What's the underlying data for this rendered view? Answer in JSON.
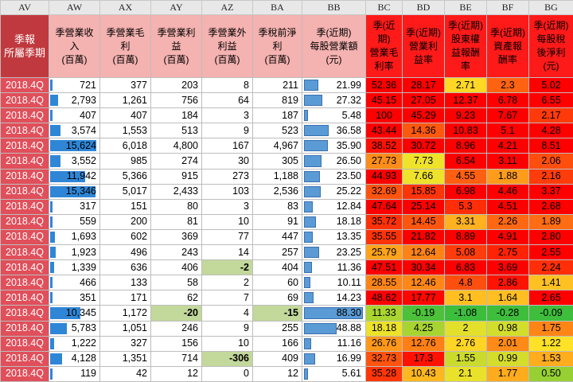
{
  "columns": [
    "AV",
    "AW",
    "AX",
    "AY",
    "AZ",
    "BA",
    "BB",
    "BC",
    "BD",
    "BE",
    "BF",
    "BG"
  ],
  "headers": [
    "季報\n所屬季期",
    "季營業收\n入\n(百萬)",
    "季營業毛\n利\n(百萬)",
    "季營業利\n益\n(百萬)",
    "季營業外\n利益\n(百萬)",
    "季稅前淨\n利\n(百萬)",
    "季(近期)\n每股營業額\n(元)",
    "季(近\n期)\n營業毛\n利率",
    "季(近期)\n營業利\n益率",
    "季(近期)\n股東權\n益報酬\n率",
    "季(近期)\n資產報\n酬率",
    "季(近期)\n每股稅\n後淨利\n(元)"
  ],
  "colors": {
    "quarter_bg": "#e04f5a",
    "header_bg": "#f4b2b0",
    "bar_blue": "#2f86d6",
    "highlight_green": "#c3d89b"
  },
  "rows": [
    {
      "q": "2018.4Q",
      "aw": "721",
      "aw_v": 721,
      "ax": "377",
      "ay": "203",
      "az": "8",
      "ba": "211",
      "bb": "21.99",
      "bb_v": 21.99,
      "bc": "52.36",
      "bd": "28.17",
      "be": "2.71",
      "bf": "2.3",
      "bg": "5.02",
      "hl": []
    },
    {
      "q": "2018.4Q",
      "aw": "2,793",
      "aw_v": 2793,
      "ax": "1,261",
      "ay": "756",
      "az": "64",
      "ba": "819",
      "bb": "27.32",
      "bb_v": 27.32,
      "bc": "45.15",
      "bd": "27.05",
      "be": "12.37",
      "bf": "6.78",
      "bg": "6.55",
      "hl": []
    },
    {
      "q": "2018.4Q",
      "aw": "407",
      "aw_v": 407,
      "ax": "407",
      "ay": "184",
      "az": "3",
      "ba": "187",
      "bb": "5.48",
      "bb_v": 5.48,
      "bc": "100",
      "bd": "45.29",
      "be": "9.23",
      "bf": "7.67",
      "bg": "2.17",
      "hl": []
    },
    {
      "q": "2018.4Q",
      "aw": "3,574",
      "aw_v": 3574,
      "ax": "1,553",
      "ay": "513",
      "az": "9",
      "ba": "523",
      "bb": "36.58",
      "bb_v": 36.58,
      "bc": "43.44",
      "bd": "14.36",
      "be": "10.83",
      "bf": "5.1",
      "bg": "4.28",
      "hl": []
    },
    {
      "q": "2018.4Q",
      "aw": "15,624",
      "aw_v": 15624,
      "ax": "6,018",
      "ay": "4,800",
      "az": "167",
      "ba": "4,967",
      "bb": "35.90",
      "bb_v": 35.9,
      "bc": "38.52",
      "bd": "30.72",
      "be": "8.96",
      "bf": "4.21",
      "bg": "8.51",
      "hl": []
    },
    {
      "q": "2018.4Q",
      "aw": "3,552",
      "aw_v": 3552,
      "ax": "985",
      "ay": "274",
      "az": "30",
      "ba": "305",
      "bb": "26.50",
      "bb_v": 26.5,
      "bc": "27.73",
      "bd": "7.73",
      "be": "6.54",
      "bf": "3.11",
      "bg": "2.06",
      "hl": []
    },
    {
      "q": "2018.4Q",
      "aw": "11,942",
      "aw_v": 11942,
      "ax": "5,366",
      "ay": "915",
      "az": "273",
      "ba": "1,188",
      "bb": "23.50",
      "bb_v": 23.5,
      "bc": "44.93",
      "bd": "7.66",
      "be": "4.55",
      "bf": "1.88",
      "bg": "2.16",
      "hl": []
    },
    {
      "q": "2018.4Q",
      "aw": "15,346",
      "aw_v": 15346,
      "ax": "5,017",
      "ay": "2,433",
      "az": "103",
      "ba": "2,536",
      "bb": "25.22",
      "bb_v": 25.22,
      "bc": "32.69",
      "bd": "15.85",
      "be": "6.98",
      "bf": "4.46",
      "bg": "3.37",
      "hl": []
    },
    {
      "q": "2018.4Q",
      "aw": "317",
      "aw_v": 317,
      "ax": "151",
      "ay": "80",
      "az": "3",
      "ba": "83",
      "bb": "12.84",
      "bb_v": 12.84,
      "bc": "47.64",
      "bd": "25.14",
      "be": "5.3",
      "bf": "4.51",
      "bg": "2.68",
      "hl": []
    },
    {
      "q": "2018.4Q",
      "aw": "559",
      "aw_v": 559,
      "ax": "200",
      "ay": "81",
      "az": "10",
      "ba": "91",
      "bb": "18.18",
      "bb_v": 18.18,
      "bc": "35.72",
      "bd": "14.45",
      "be": "3.31",
      "bf": "2.26",
      "bg": "1.89",
      "hl": []
    },
    {
      "q": "2018.4Q",
      "aw": "1,693",
      "aw_v": 1693,
      "ax": "602",
      "ay": "369",
      "az": "77",
      "ba": "447",
      "bb": "13.35",
      "bb_v": 13.35,
      "bc": "35.55",
      "bd": "21.82",
      "be": "8.89",
      "bf": "4.91",
      "bg": "2.80",
      "hl": []
    },
    {
      "q": "2018.4Q",
      "aw": "1,923",
      "aw_v": 1923,
      "ax": "496",
      "ay": "243",
      "az": "14",
      "ba": "257",
      "bb": "23.25",
      "bb_v": 23.25,
      "bc": "25.79",
      "bd": "12.64",
      "be": "5.08",
      "bf": "2.75",
      "bg": "2.55",
      "hl": []
    },
    {
      "q": "2018.4Q",
      "aw": "1,339",
      "aw_v": 1339,
      "ax": "636",
      "ay": "406",
      "az": "-2",
      "ba": "404",
      "bb": "11.36",
      "bb_v": 11.36,
      "bc": "47.51",
      "bd": "30.34",
      "be": "6.83",
      "bf": "3.69",
      "bg": "2.24",
      "hl": [
        "az"
      ]
    },
    {
      "q": "2018.4Q",
      "aw": "466",
      "aw_v": 466,
      "ax": "133",
      "ay": "58",
      "az": "2",
      "ba": "60",
      "bb": "10.11",
      "bb_v": 10.11,
      "bc": "28.55",
      "bd": "12.46",
      "be": "4.8",
      "bf": "2.86",
      "bg": "1.41",
      "hl": []
    },
    {
      "q": "2018.4Q",
      "aw": "351",
      "aw_v": 351,
      "ax": "171",
      "ay": "62",
      "az": "7",
      "ba": "69",
      "bb": "14.23",
      "bb_v": 14.23,
      "bc": "48.62",
      "bd": "17.77",
      "be": "3.1",
      "bf": "1.64",
      "bg": "2.65",
      "hl": []
    },
    {
      "q": "2018.4Q",
      "aw": "10,345",
      "aw_v": 10345,
      "ax": "1,172",
      "ay": "-20",
      "az": "4",
      "ba": "-15",
      "bb": "88.30",
      "bb_v": 88.3,
      "bc": "11.33",
      "bd": "-0.19",
      "be": "-1.08",
      "bf": "-0.28",
      "bg": "-0.09",
      "hl": [
        "ay",
        "ba"
      ]
    },
    {
      "q": "2018.4Q",
      "aw": "5,783",
      "aw_v": 5783,
      "ax": "1,051",
      "ay": "246",
      "az": "9",
      "ba": "255",
      "bb": "48.88",
      "bb_v": 48.88,
      "bc": "18.18",
      "bd": "4.25",
      "be": "2",
      "bf": "0.98",
      "bg": "1.75",
      "hl": []
    },
    {
      "q": "2018.4Q",
      "aw": "1,222",
      "aw_v": 1222,
      "ax": "327",
      "ay": "156",
      "az": "10",
      "ba": "166",
      "bb": "11.16",
      "bb_v": 11.16,
      "bc": "26.76",
      "bd": "12.76",
      "be": "2.76",
      "bf": "2.01",
      "bg": "1.22",
      "hl": []
    },
    {
      "q": "2018.4Q",
      "aw": "4,128",
      "aw_v": 4128,
      "ax": "1,351",
      "ay": "714",
      "az": "-306",
      "ba": "409",
      "bb": "16.99",
      "bb_v": 16.99,
      "bc": "32.73",
      "bd": "17.3",
      "be": "1.55",
      "bf": "0.99",
      "bg": "1.53",
      "hl": [
        "az"
      ]
    },
    {
      "q": "2018.4Q",
      "aw": "119",
      "aw_v": 119,
      "ax": "42",
      "ay": "12",
      "az": "0",
      "ba": "12",
      "bb": "5.61",
      "bb_v": 5.61,
      "bc": "35.28",
      "bd": "10.43",
      "be": "2.1",
      "bf": "1.77",
      "bg": "0.50",
      "hl": []
    }
  ]
}
